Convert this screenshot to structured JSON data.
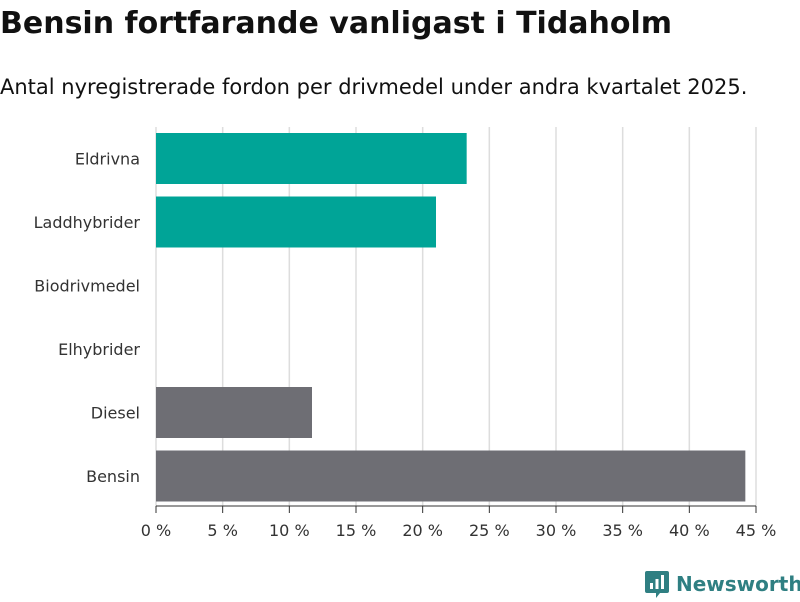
{
  "title": "Bensin fortfarande vanligast i Tidaholm",
  "subtitle": "Antal nyregistrerade fordon per drivmedel under andra kvartalet 2025.",
  "brand": {
    "name": "Newsworthy",
    "color": "#2f7f82",
    "icon": "newsworthy-logo-icon"
  },
  "colors": {
    "highlight": "#00a497",
    "default": "#6e6e74",
    "grid": "#dddddd"
  },
  "chart_data": {
    "type": "bar",
    "orientation": "horizontal",
    "title": "Bensin fortfarande vanligast i Tidaholm",
    "subtitle": "Antal nyregistrerade fordon per drivmedel under andra kvartalet 2025.",
    "categories": [
      "Eldrivna",
      "Laddhybrider",
      "Biodrivmedel",
      "Elhybrider",
      "Diesel",
      "Bensin"
    ],
    "values": [
      23.3,
      21.0,
      0,
      0,
      11.7,
      44.2
    ],
    "bar_colors": [
      "#00a497",
      "#00a497",
      "#6e6e74",
      "#6e6e74",
      "#6e6e74",
      "#6e6e74"
    ],
    "xlim": [
      0,
      45
    ],
    "xticks": [
      0,
      5,
      10,
      15,
      20,
      25,
      30,
      35,
      40,
      45
    ],
    "tick_labels": [
      "0 %",
      "5 %",
      "10 %",
      "15 %",
      "20 %",
      "25 %",
      "30 %",
      "35 %",
      "40 %",
      "45 %"
    ],
    "unit": "%",
    "grid": true,
    "legend": "none"
  }
}
